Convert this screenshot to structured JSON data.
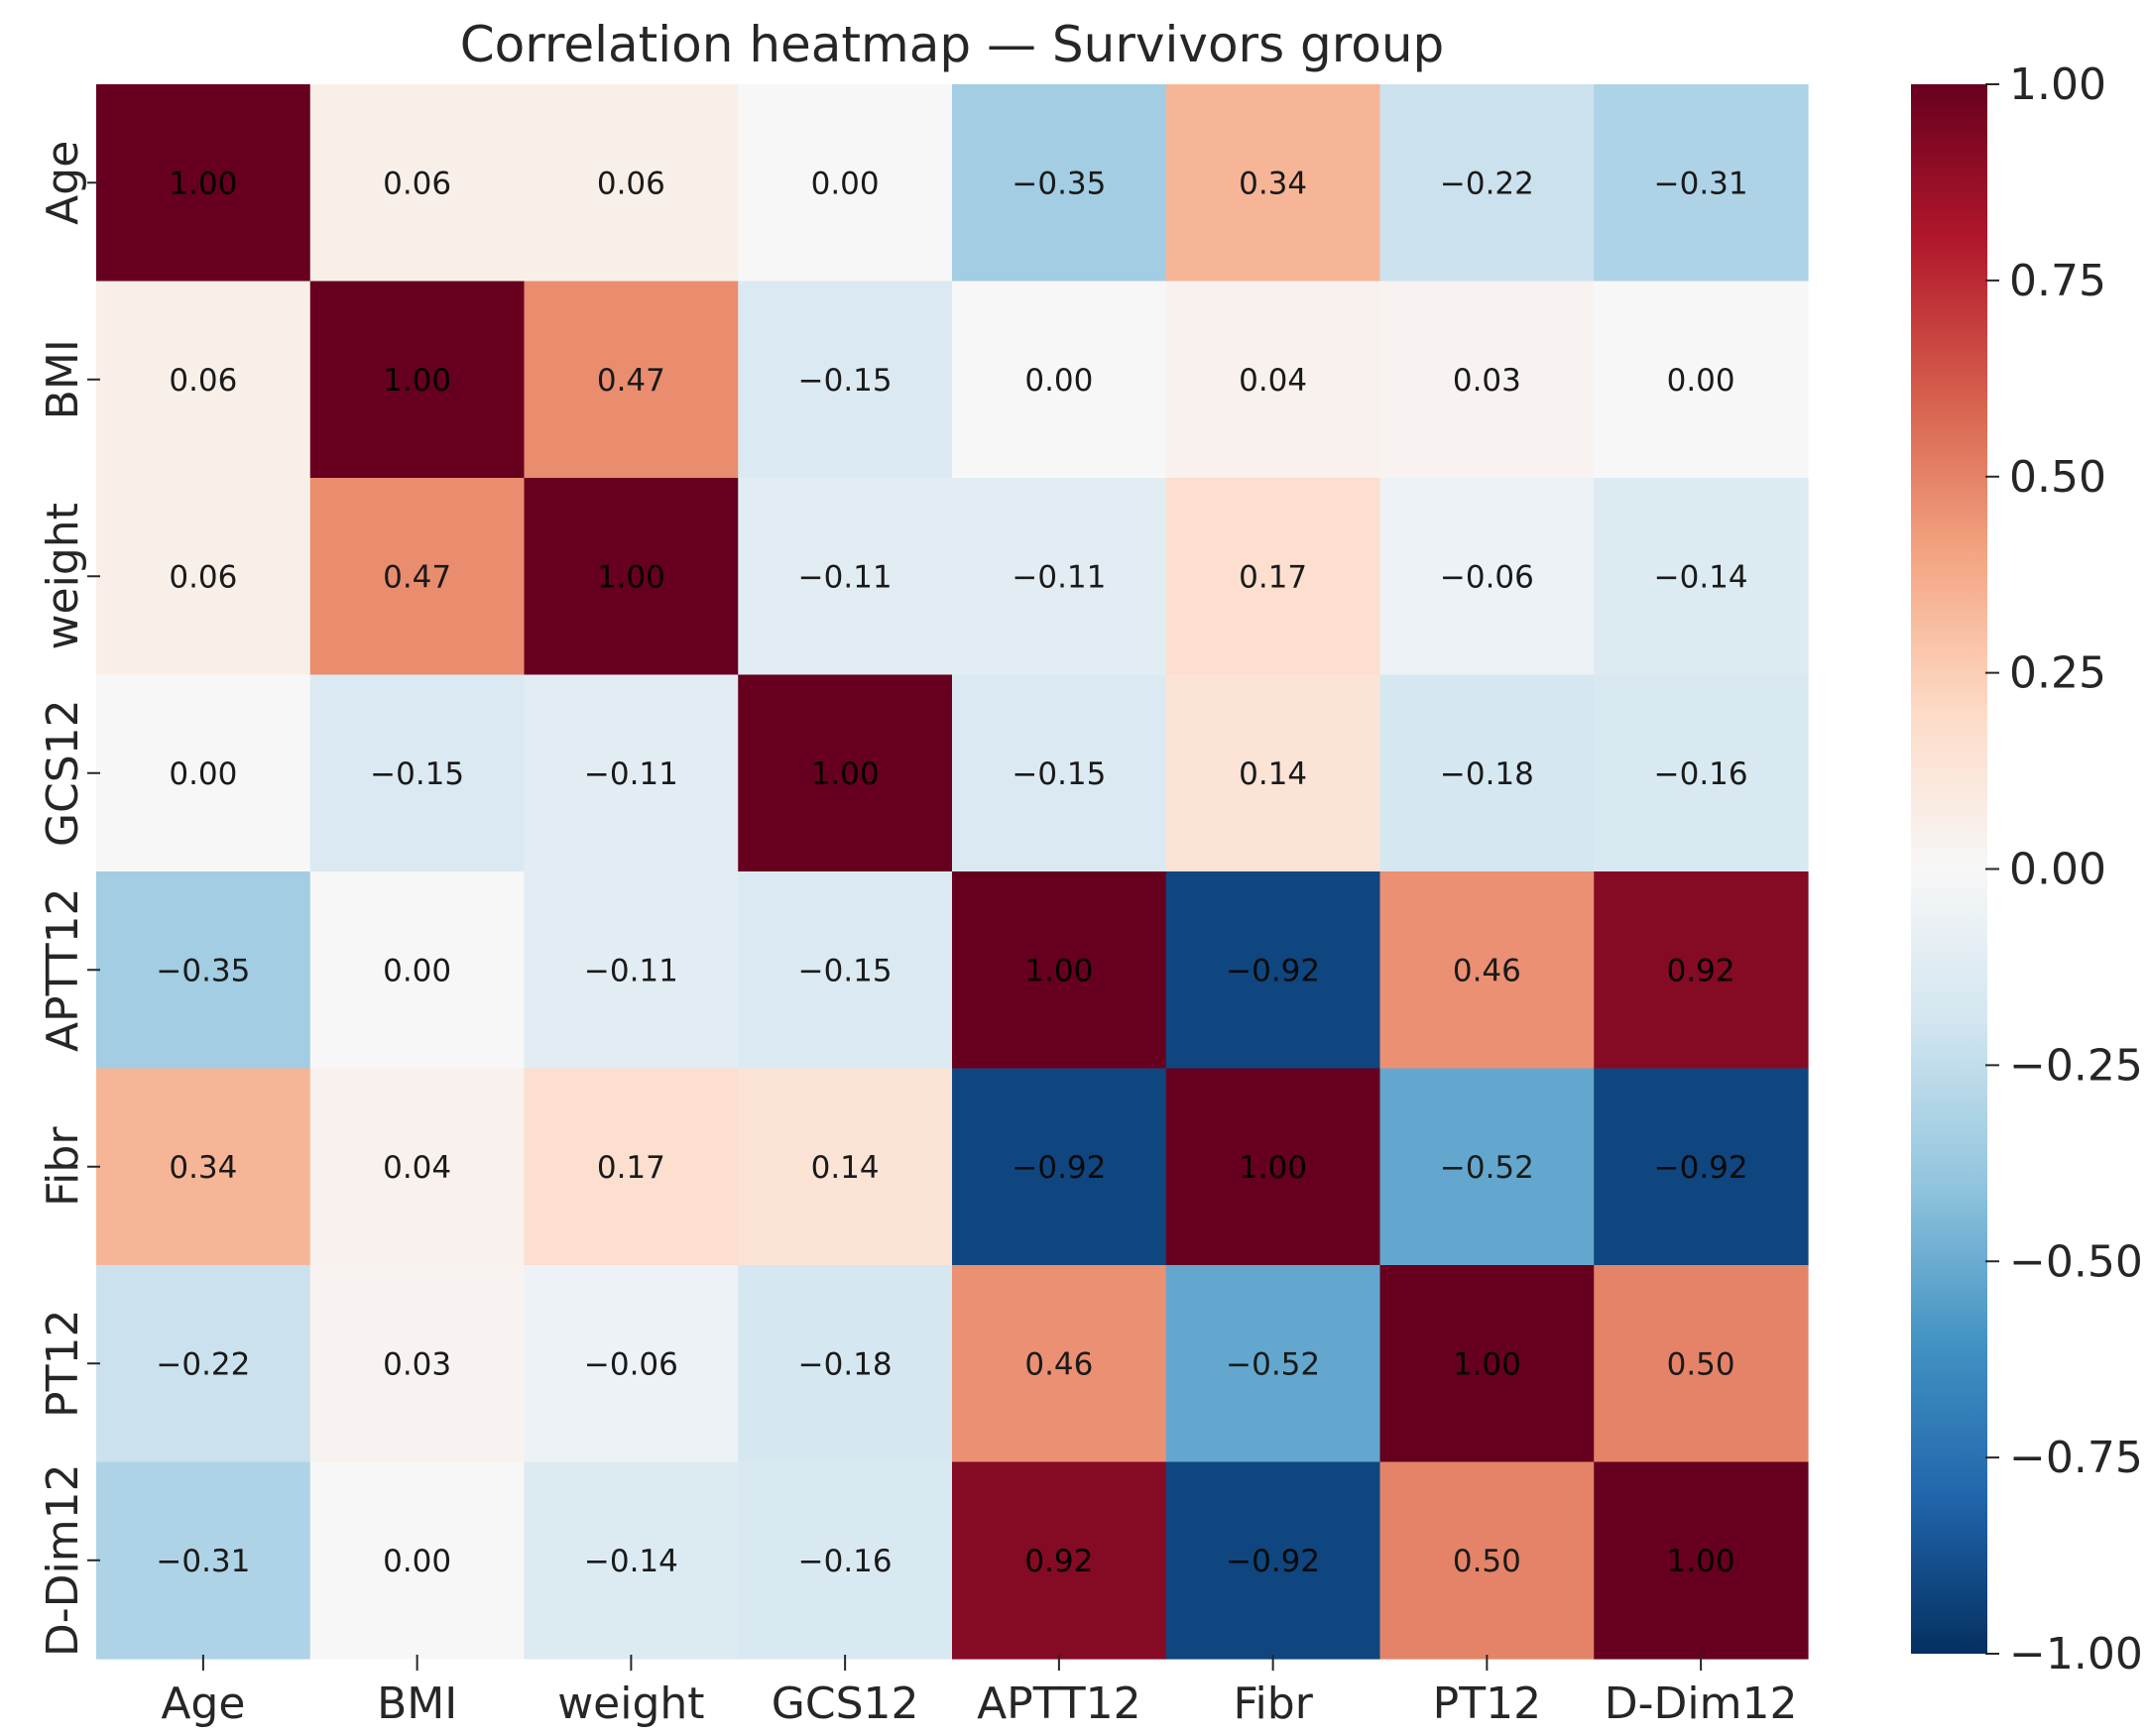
{
  "chart_data": {
    "type": "heatmap",
    "title": "Correlation heatmap — Survivors group",
    "xlabel": "",
    "ylabel": "",
    "variables": [
      "Age",
      "BMI",
      "weight",
      "GCS12",
      "APTT12",
      "Fibr",
      "PT12",
      "D-Dim12"
    ],
    "values": [
      [
        1.0,
        0.06,
        0.06,
        0.0,
        -0.35,
        0.34,
        -0.22,
        -0.31
      ],
      [
        0.06,
        1.0,
        0.47,
        -0.15,
        0.0,
        0.04,
        0.03,
        0.0
      ],
      [
        0.06,
        0.47,
        1.0,
        -0.11,
        -0.11,
        0.17,
        -0.06,
        -0.14
      ],
      [
        0.0,
        -0.15,
        -0.11,
        1.0,
        -0.15,
        0.14,
        -0.18,
        -0.16
      ],
      [
        -0.35,
        0.0,
        -0.11,
        -0.15,
        1.0,
        -0.92,
        0.46,
        0.92
      ],
      [
        0.34,
        0.04,
        0.17,
        0.14,
        -0.92,
        1.0,
        -0.52,
        -0.92
      ],
      [
        -0.22,
        0.03,
        -0.06,
        -0.18,
        0.46,
        -0.52,
        1.0,
        0.5
      ],
      [
        -0.31,
        0.0,
        -0.14,
        -0.16,
        0.92,
        -0.92,
        0.5,
        1.0
      ]
    ],
    "cell_labels": [
      [
        "1.00",
        "0.06",
        "0.06",
        "0.00",
        "−0.35",
        "0.34",
        "−0.22",
        "−0.31"
      ],
      [
        "0.06",
        "1.00",
        "0.47",
        "−0.15",
        "0.00",
        "0.04",
        "0.03",
        "0.00"
      ],
      [
        "0.06",
        "0.47",
        "1.00",
        "−0.11",
        "−0.11",
        "0.17",
        "−0.06",
        "−0.14"
      ],
      [
        "0.00",
        "−0.15",
        "−0.11",
        "1.00",
        "−0.15",
        "0.14",
        "−0.18",
        "−0.16"
      ],
      [
        "−0.35",
        "0.00",
        "−0.11",
        "−0.15",
        "1.00",
        "−0.92",
        "0.46",
        "0.92"
      ],
      [
        "0.34",
        "0.04",
        "0.17",
        "0.14",
        "−0.92",
        "1.00",
        "−0.52",
        "−0.92"
      ],
      [
        "−0.22",
        "0.03",
        "−0.06",
        "−0.18",
        "0.46",
        "−0.52",
        "1.00",
        "0.50"
      ],
      [
        "−0.31",
        "0.00",
        "−0.14",
        "−0.16",
        "0.92",
        "−0.92",
        "0.50",
        "1.00"
      ]
    ],
    "colorbar": {
      "range": [
        -1.0,
        1.0
      ],
      "ticks": [
        1.0,
        0.75,
        0.5,
        0.25,
        0.0,
        -0.25,
        -0.5,
        -0.75,
        -1.0
      ],
      "tick_labels": [
        "1.00",
        "0.75",
        "0.50",
        "0.25",
        "0.00",
        "−0.25",
        "−0.50",
        "−0.75",
        "−1.00"
      ],
      "colormap": "RdBu_r",
      "placement": "right"
    },
    "colormap_stops": [
      {
        "v": -1.0,
        "color": "#053061"
      },
      {
        "v": -0.8,
        "color": "#2166ac"
      },
      {
        "v": -0.6,
        "color": "#4393c3"
      },
      {
        "v": -0.4,
        "color": "#92c5de"
      },
      {
        "v": -0.2,
        "color": "#d1e5f0"
      },
      {
        "v": 0.0,
        "color": "#f7f7f7"
      },
      {
        "v": 0.2,
        "color": "#fddbc7"
      },
      {
        "v": 0.4,
        "color": "#f4a582"
      },
      {
        "v": 0.6,
        "color": "#d6604d"
      },
      {
        "v": 0.8,
        "color": "#b2182b"
      },
      {
        "v": 1.0,
        "color": "#67001f"
      }
    ],
    "text_color_dark": "#1a1a1a",
    "text_color_light": "#ffffff",
    "text_color_on_darkest": "#000000"
  }
}
